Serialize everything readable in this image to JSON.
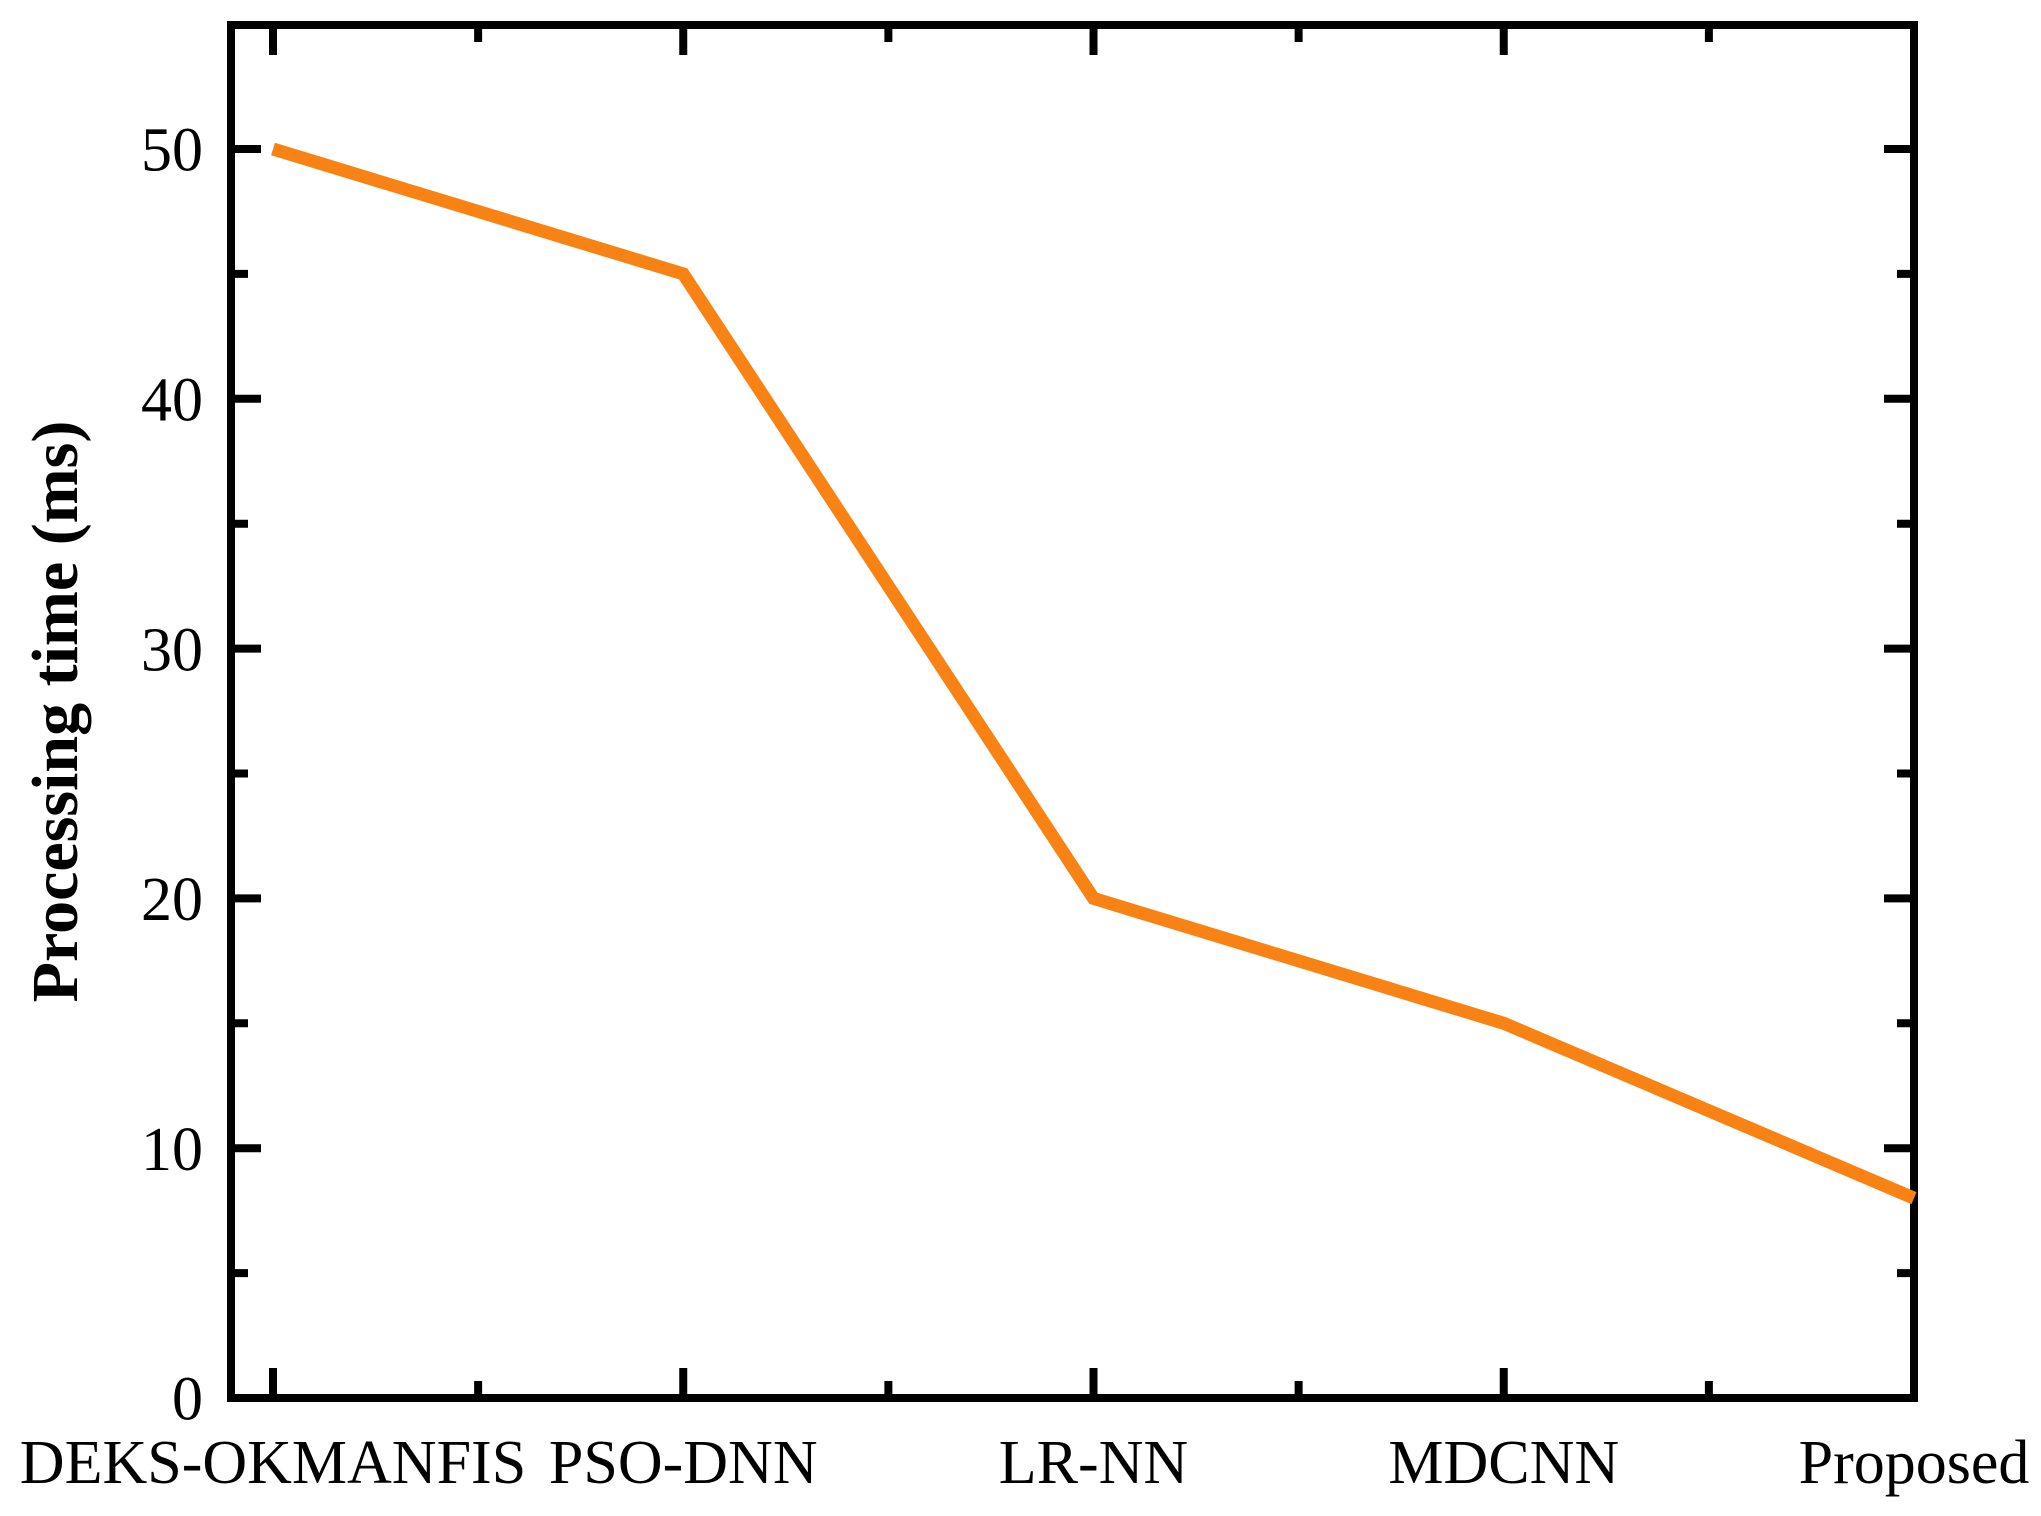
{
  "chart_data": {
    "type": "line",
    "categories": [
      "DEKS-OKMANFIS",
      "PSO-DNN",
      "LR-NN",
      "MDCNN",
      "Proposed"
    ],
    "values": [
      50,
      45,
      20,
      15,
      8
    ],
    "title": "",
    "xlabel": "",
    "ylabel": "Processing time (ms)",
    "ylim": [
      0,
      50
    ],
    "yticks": [
      0,
      10,
      20,
      30,
      40,
      50
    ],
    "y_minor_step": 5,
    "x_minor_ticks_between_categories": true,
    "grid": false,
    "legend": false,
    "marker": "none",
    "line_color": "#F88214",
    "axis_color": "#000000",
    "background": "#FFFFFF"
  }
}
